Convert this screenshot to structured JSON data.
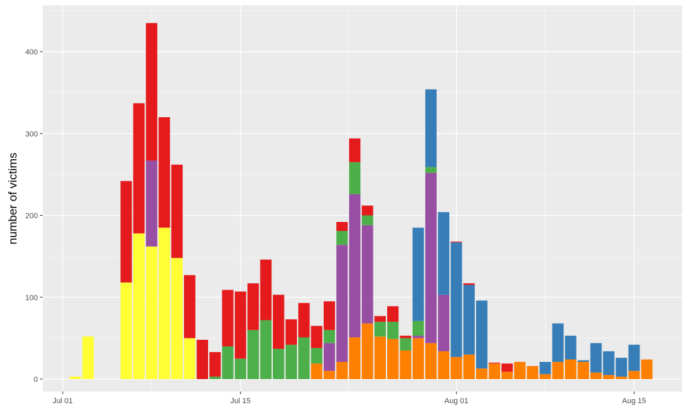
{
  "chart_data": {
    "type": "bar",
    "stacked": true,
    "title": "",
    "xlabel": "",
    "ylabel": "number of victims",
    "ylim": [
      -25,
      455
    ],
    "y_ticks": [
      0,
      100,
      200,
      300,
      400
    ],
    "x_start_date": "Jul 01",
    "x_ticks": [
      {
        "day": 0,
        "label": "Jul 01"
      },
      {
        "day": 14,
        "label": "Jul 15"
      },
      {
        "day": 31,
        "label": "Aug 01"
      },
      {
        "day": 45,
        "label": "Aug 15"
      }
    ],
    "grid": true,
    "legend": "none",
    "n_days": 47,
    "series": [
      {
        "name": "yellow",
        "color": "#FFFF33",
        "values": [
          0,
          3,
          52,
          0,
          0,
          118,
          178,
          162,
          185,
          148,
          50,
          0,
          0,
          0,
          0,
          0,
          0,
          0,
          0,
          0,
          0,
          0,
          0,
          0,
          0,
          0,
          0,
          0,
          0,
          0,
          0,
          0,
          0,
          0,
          0,
          0,
          0,
          0,
          0,
          0,
          0,
          0,
          0,
          0,
          0,
          0,
          0
        ]
      },
      {
        "name": "orange",
        "color": "#FF7F00",
        "values": [
          0,
          0,
          0,
          0,
          0,
          0,
          0,
          0,
          0,
          0,
          0,
          0,
          0,
          0,
          0,
          0,
          0,
          0,
          0,
          0,
          19,
          10,
          21,
          51,
          68,
          52,
          49,
          35,
          50,
          44,
          34,
          27,
          30,
          13,
          19,
          9,
          21,
          16,
          6,
          21,
          24,
          21,
          8,
          5,
          3,
          10,
          24
        ]
      },
      {
        "name": "purple",
        "color": "#984EA3",
        "values": [
          0,
          0,
          0,
          0,
          0,
          0,
          0,
          105,
          0,
          0,
          0,
          0,
          0,
          0,
          0,
          0,
          0,
          0,
          0,
          0,
          0,
          34,
          143,
          175,
          120,
          0,
          0,
          0,
          3,
          208,
          69,
          0,
          0,
          0,
          0,
          0,
          0,
          0,
          0,
          0,
          0,
          0,
          0,
          0,
          0,
          0,
          0
        ]
      },
      {
        "name": "green",
        "color": "#4DAF4A",
        "values": [
          0,
          0,
          0,
          0,
          0,
          0,
          0,
          0,
          0,
          0,
          0,
          0,
          3,
          40,
          25,
          60,
          72,
          37,
          42,
          51,
          19,
          16,
          17,
          39,
          12,
          18,
          21,
          15,
          18,
          7,
          0,
          0,
          0,
          0,
          0,
          0,
          0,
          0,
          0,
          0,
          0,
          0,
          0,
          0,
          0,
          0,
          0
        ]
      },
      {
        "name": "blue",
        "color": "#377EB8",
        "values": [
          0,
          0,
          0,
          0,
          0,
          0,
          0,
          0,
          0,
          0,
          0,
          0,
          0,
          0,
          0,
          0,
          0,
          0,
          0,
          0,
          0,
          0,
          0,
          0,
          0,
          0,
          0,
          0,
          114,
          95,
          101,
          140,
          85,
          83,
          0,
          0,
          0,
          0,
          15,
          47,
          29,
          2,
          36,
          29,
          23,
          32,
          0
        ]
      },
      {
        "name": "red",
        "color": "#E41A1C",
        "values": [
          0,
          0,
          0,
          0,
          0,
          124,
          159,
          168,
          135,
          114,
          77,
          48,
          30,
          69,
          82,
          57,
          74,
          66,
          31,
          42,
          27,
          35,
          11,
          29,
          12,
          7,
          19,
          3,
          0,
          0,
          0,
          1,
          2,
          0,
          1,
          10,
          0,
          0,
          0,
          0,
          0,
          0,
          0,
          0,
          0,
          0,
          0
        ]
      }
    ]
  }
}
